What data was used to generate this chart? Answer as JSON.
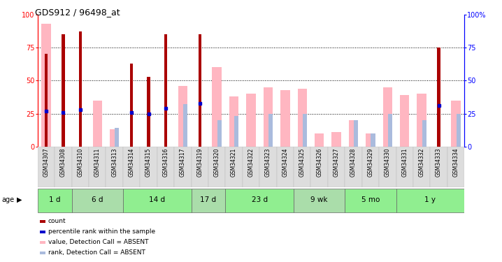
{
  "title": "GDS912 / 96498_at",
  "samples": [
    "GSM34307",
    "GSM34308",
    "GSM34310",
    "GSM34311",
    "GSM34313",
    "GSM34314",
    "GSM34315",
    "GSM34316",
    "GSM34317",
    "GSM34319",
    "GSM34320",
    "GSM34321",
    "GSM34322",
    "GSM34323",
    "GSM34324",
    "GSM34325",
    "GSM34326",
    "GSM34327",
    "GSM34328",
    "GSM34329",
    "GSM34330",
    "GSM34331",
    "GSM34332",
    "GSM34333",
    "GSM34334"
  ],
  "count_values": [
    70,
    85,
    87,
    0,
    0,
    63,
    53,
    85,
    0,
    85,
    0,
    0,
    0,
    0,
    0,
    0,
    0,
    0,
    0,
    0,
    0,
    0,
    0,
    75,
    0
  ],
  "rank_values": [
    27,
    26,
    28,
    0,
    0,
    26,
    25,
    29,
    0,
    33,
    0,
    0,
    0,
    0,
    0,
    0,
    0,
    0,
    0,
    0,
    0,
    0,
    0,
    31,
    0
  ],
  "absent_value": [
    93,
    0,
    0,
    35,
    13,
    0,
    0,
    0,
    46,
    0,
    60,
    38,
    40,
    45,
    43,
    44,
    10,
    11,
    20,
    10,
    45,
    39,
    40,
    0,
    35
  ],
  "absent_rank": [
    0,
    0,
    0,
    0,
    14,
    0,
    0,
    0,
    32,
    0,
    20,
    23,
    0,
    25,
    0,
    25,
    0,
    0,
    20,
    10,
    25,
    0,
    20,
    0,
    25
  ],
  "age_groups": [
    {
      "label": "1 d",
      "start": 0,
      "end": 2
    },
    {
      "label": "6 d",
      "start": 2,
      "end": 5
    },
    {
      "label": "14 d",
      "start": 5,
      "end": 9
    },
    {
      "label": "17 d",
      "start": 9,
      "end": 11
    },
    {
      "label": "23 d",
      "start": 11,
      "end": 15
    },
    {
      "label": "9 wk",
      "start": 15,
      "end": 18
    },
    {
      "label": "5 mo",
      "start": 18,
      "end": 21
    },
    {
      "label": "1 y",
      "start": 21,
      "end": 25
    }
  ],
  "yticks": [
    0,
    25,
    50,
    75,
    100
  ],
  "count_color": "#AA0000",
  "rank_color": "#0000CC",
  "absent_value_color": "#FFB6C1",
  "absent_rank_color": "#AABBDD",
  "age_colors": [
    "#90EE90",
    "#AADDAA",
    "#90EE90",
    "#AADDAA",
    "#90EE90",
    "#AADDAA",
    "#90EE90",
    "#90EE90"
  ],
  "legend_items": [
    {
      "label": "count",
      "color": "#AA0000"
    },
    {
      "label": "percentile rank within the sample",
      "color": "#0000CC"
    },
    {
      "label": "value, Detection Call = ABSENT",
      "color": "#FFB6C1"
    },
    {
      "label": "rank, Detection Call = ABSENT",
      "color": "#AABBDD"
    }
  ]
}
